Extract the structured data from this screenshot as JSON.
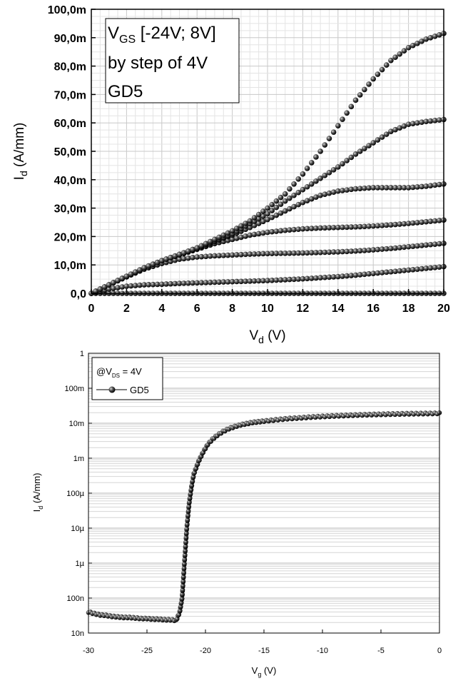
{
  "chart_data": [
    {
      "type": "scatter",
      "xlabel": {
        "main": "V",
        "sub": "d",
        "rest": " (V)"
      },
      "ylabel": {
        "main": "I",
        "sub": "d",
        "rest": " (A/mm)"
      },
      "xlim": [
        0,
        20
      ],
      "ylim": [
        0,
        0.1
      ],
      "x_ticks": [
        "0",
        "2",
        "4",
        "6",
        "8",
        "10",
        "12",
        "14",
        "16",
        "18",
        "20"
      ],
      "y_ticks": [
        "0,0",
        "10,0m",
        "20,0m",
        "30,0m",
        "40,0m",
        "50,0m",
        "60,0m",
        "70,0m",
        "80,0m",
        "90,0m",
        "100,0m"
      ],
      "grid": true,
      "legend_box": {
        "line1_main": "V",
        "line1_sub": "GS",
        "line1_rest": " [-24V; 8V]",
        "line2": "by step of 4V",
        "line3": "GD5"
      },
      "series": [
        {
          "x": [
            0,
            1,
            2,
            3,
            4,
            5,
            6,
            7,
            8,
            9,
            10,
            11,
            12,
            13,
            14,
            15,
            16,
            17,
            18,
            19,
            20
          ],
          "y": [
            0,
            0,
            0,
            0,
            0,
            0,
            0,
            0,
            0,
            0,
            0,
            0,
            0,
            0,
            0,
            0,
            0,
            0,
            0,
            0,
            0
          ]
        },
        {
          "x": [
            0,
            1,
            2,
            3,
            4,
            5,
            6,
            7,
            8,
            9,
            10,
            11,
            12,
            13,
            14,
            15,
            16,
            17,
            18,
            19,
            20
          ],
          "y": [
            0,
            0.0015,
            0.0025,
            0.003,
            0.0032,
            0.0035,
            0.0037,
            0.0039,
            0.0041,
            0.0043,
            0.0045,
            0.0048,
            0.0051,
            0.0055,
            0.0059,
            0.0064,
            0.007,
            0.0076,
            0.0082,
            0.0088,
            0.0094
          ]
        },
        {
          "x": [
            0,
            1,
            2,
            3,
            4,
            5,
            6,
            7,
            8,
            9,
            10,
            11,
            12,
            13,
            14,
            15,
            16,
            17,
            18,
            19,
            20
          ],
          "y": [
            0,
            0.003,
            0.0058,
            0.0085,
            0.0105,
            0.012,
            0.0128,
            0.0132,
            0.0135,
            0.0138,
            0.014,
            0.0141,
            0.0142,
            0.0144,
            0.0146,
            0.0149,
            0.0153,
            0.0158,
            0.0164,
            0.017,
            0.0176
          ]
        },
        {
          "x": [
            0,
            1,
            2,
            3,
            4,
            5,
            6,
            7,
            8,
            9,
            10,
            11,
            12,
            13,
            14,
            15,
            16,
            17,
            18,
            19,
            20
          ],
          "y": [
            0,
            0.003,
            0.006,
            0.009,
            0.0115,
            0.0135,
            0.0155,
            0.0175,
            0.019,
            0.0205,
            0.0215,
            0.0222,
            0.0227,
            0.023,
            0.0232,
            0.0234,
            0.0237,
            0.0241,
            0.0246,
            0.0252,
            0.0258
          ]
        },
        {
          "x": [
            0,
            1,
            2,
            3,
            4,
            5,
            6,
            7,
            8,
            9,
            10,
            11,
            12,
            13,
            14,
            15,
            16,
            17,
            18,
            19,
            20
          ],
          "y": [
            0,
            0.003,
            0.006,
            0.009,
            0.0115,
            0.0137,
            0.0158,
            0.0182,
            0.0205,
            0.0232,
            0.026,
            0.029,
            0.032,
            0.0345,
            0.036,
            0.0368,
            0.0372,
            0.0372,
            0.0372,
            0.0377,
            0.0385
          ]
        },
        {
          "x": [
            0,
            1,
            2,
            3,
            4,
            5,
            6,
            7,
            8,
            9,
            10,
            11,
            12,
            13,
            14,
            15,
            16,
            17,
            18,
            19,
            20
          ],
          "y": [
            0,
            0.003,
            0.006,
            0.009,
            0.0115,
            0.0137,
            0.016,
            0.0185,
            0.021,
            0.0245,
            0.028,
            0.0325,
            0.0365,
            0.0405,
            0.0445,
            0.049,
            0.053,
            0.057,
            0.0595,
            0.0605,
            0.0612
          ]
        },
        {
          "x": [
            0,
            1,
            2,
            3,
            4,
            5,
            6,
            7,
            8,
            9,
            10,
            11,
            12,
            13,
            14,
            15,
            16,
            17,
            18,
            19,
            20
          ],
          "y": [
            0,
            0.003,
            0.006,
            0.009,
            0.0115,
            0.0137,
            0.016,
            0.019,
            0.022,
            0.0255,
            0.03,
            0.035,
            0.042,
            0.05,
            0.059,
            0.068,
            0.0755,
            0.082,
            0.0865,
            0.0895,
            0.0915
          ]
        }
      ]
    },
    {
      "type": "scatter",
      "xlabel": {
        "main": "V",
        "sub": "g",
        "rest": " (V)"
      },
      "ylabel": {
        "main": "I",
        "sub": "d",
        "rest": " (A/mm)"
      },
      "xlim": [
        -30,
        0
      ],
      "ylim": [
        1e-08,
        1
      ],
      "y_scale": "log",
      "x_ticks": [
        "-30",
        "-25",
        "-20",
        "-15",
        "-10",
        "-5",
        "0"
      ],
      "y_ticks": [
        "10n",
        "100n",
        "1µ",
        "10µ",
        "100µ",
        "1m",
        "10m",
        "100m",
        "1"
      ],
      "grid": true,
      "legend_box": {
        "line1_prefix": "@V",
        "line1_sub": "DS",
        "line1_rest": " = 4V",
        "entry": "GD5"
      },
      "series": [
        {
          "name": "GD5",
          "x": [
            -30,
            -29.5,
            -29,
            -28.5,
            -28,
            -27.5,
            -27,
            -26.5,
            -26,
            -25.5,
            -25,
            -24.5,
            -24,
            -23.5,
            -23,
            -22.5,
            -22.2,
            -22,
            -21.8,
            -21.6,
            -21.4,
            -21.2,
            -21,
            -20.6,
            -20.2,
            -19.8,
            -19.4,
            -19,
            -18.5,
            -18,
            -17.5,
            -17,
            -16,
            -15,
            -14,
            -13,
            -12,
            -11,
            -10,
            -9,
            -8,
            -7,
            -6,
            -5,
            -4,
            -3,
            -2,
            -1,
            0
          ],
          "y": [
            4e-08,
            3.6e-08,
            3.3e-08,
            3.2e-08,
            3e-08,
            2.9e-08,
            2.8e-08,
            2.8e-08,
            2.7e-08,
            2.6e-08,
            2.6e-08,
            2.5e-08,
            2.5e-08,
            2.4e-08,
            2.4e-08,
            2.3e-08,
            4e-08,
            1e-07,
            1e-06,
            1e-05,
            5e-05,
            0.00015,
            0.00035,
            0.0008,
            0.0015,
            0.0025,
            0.0035,
            0.0045,
            0.0058,
            0.007,
            0.008,
            0.009,
            0.0105,
            0.0115,
            0.0125,
            0.0135,
            0.0142,
            0.015,
            0.0156,
            0.0162,
            0.0167,
            0.0172,
            0.0176,
            0.018,
            0.0183,
            0.0186,
            0.0188,
            0.019,
            0.0192
          ]
        }
      ]
    }
  ]
}
